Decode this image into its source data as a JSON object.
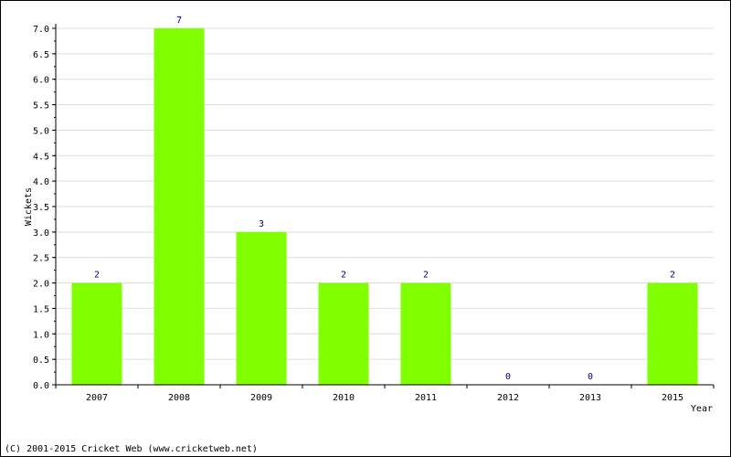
{
  "chart_data": {
    "type": "bar",
    "categories": [
      "2007",
      "2008",
      "2009",
      "2010",
      "2011",
      "2012",
      "2013",
      "2015"
    ],
    "values": [
      2,
      7,
      3,
      2,
      2,
      0,
      0,
      2
    ],
    "data_labels": [
      "2",
      "7",
      "3",
      "2",
      "2",
      "0",
      "0",
      "2"
    ],
    "title": "",
    "xlabel": "Year",
    "ylabel": "Wickets",
    "ylim": [
      0,
      7
    ],
    "yticks": [
      "0.0",
      "0.5",
      "1.0",
      "1.5",
      "2.0",
      "2.5",
      "3.0",
      "3.5",
      "4.0",
      "4.5",
      "5.0",
      "5.5",
      "6.0",
      "6.5",
      "7.0"
    ],
    "grid": true,
    "bar_color": "#7fff00",
    "label_color": "#000080",
    "grid_color": "#dddddd"
  },
  "footer": "(C) 2001-2015 Cricket Web (www.cricketweb.net)"
}
